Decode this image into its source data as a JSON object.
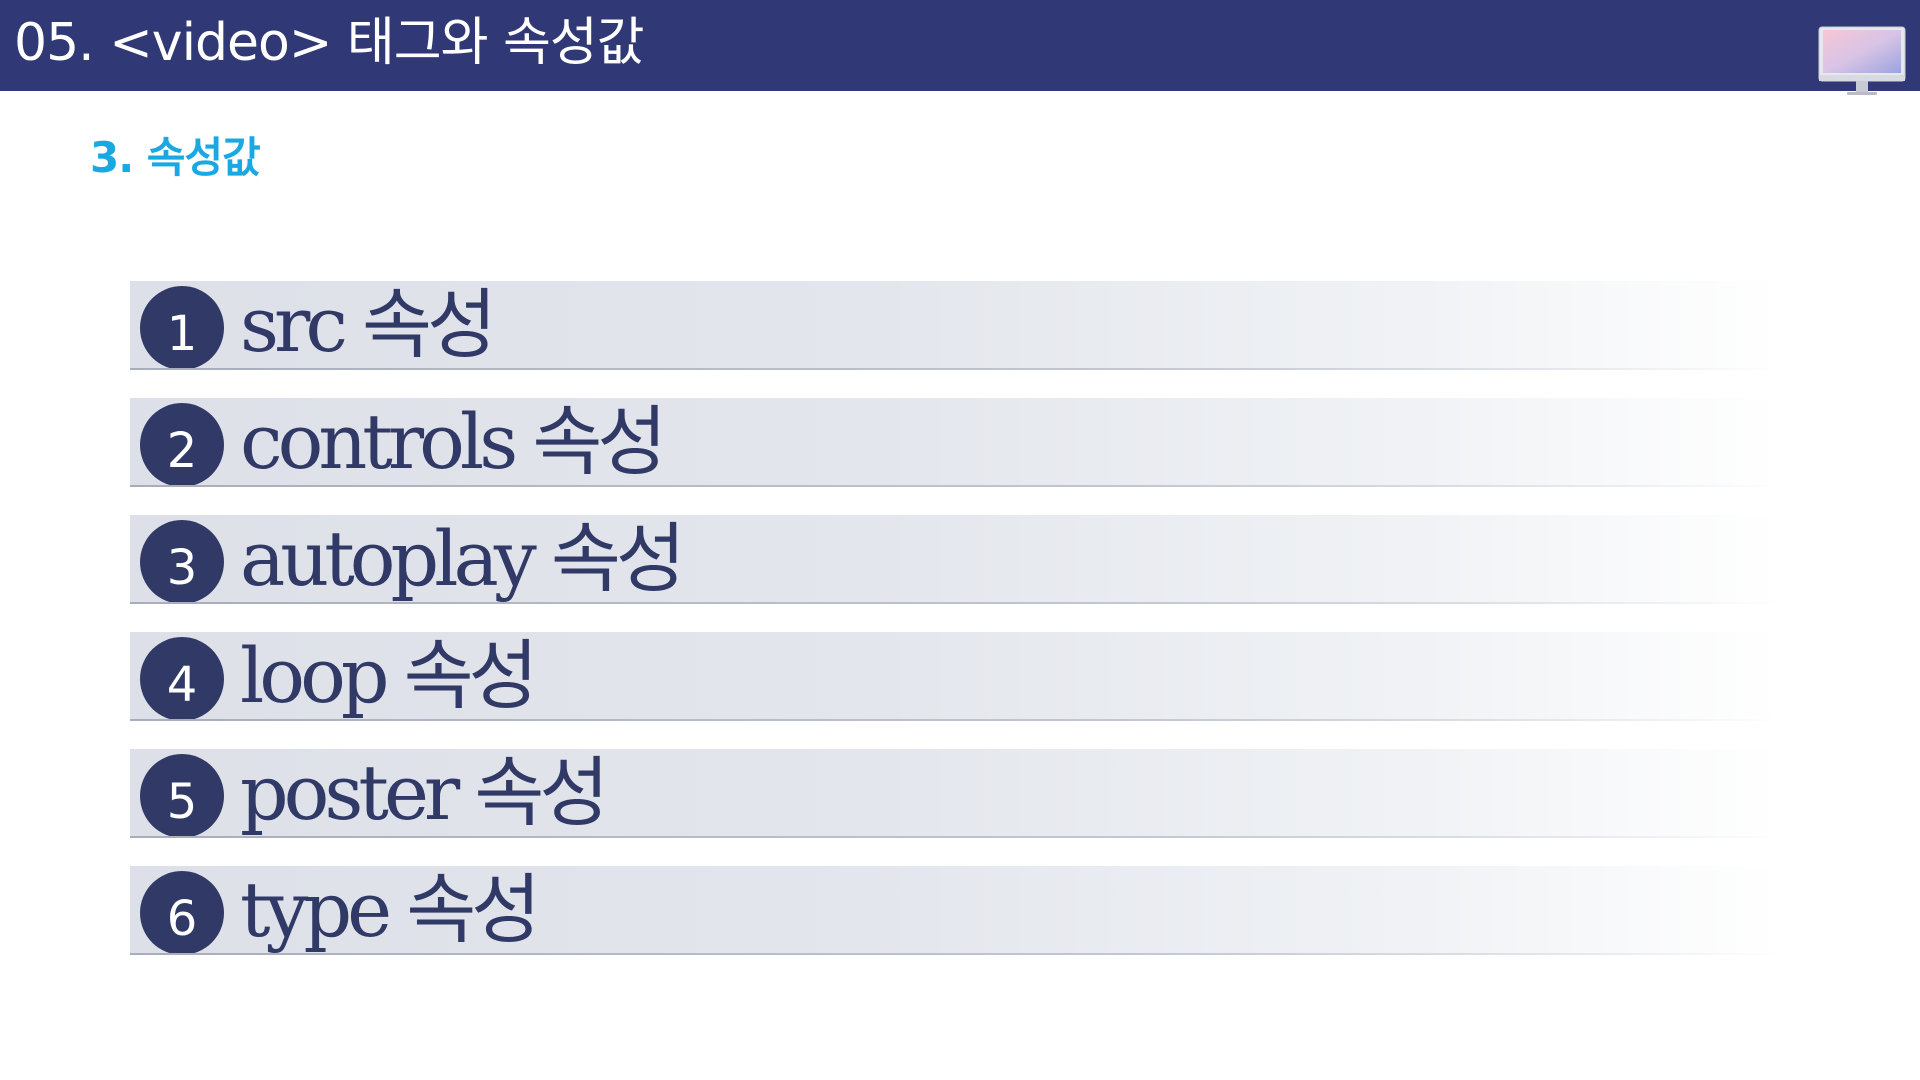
{
  "header": {
    "title": "05. <video> 태그와 속성값",
    "icon": "monitor-icon"
  },
  "section": {
    "heading": "3. 속성값"
  },
  "items": [
    {
      "number": "1",
      "label": "src 속성"
    },
    {
      "number": "2",
      "label": "controls 속성"
    },
    {
      "number": "3",
      "label": "autoplay 속성"
    },
    {
      "number": "4",
      "label": "loop 속성"
    },
    {
      "number": "5",
      "label": "poster 속성"
    },
    {
      "number": "6",
      "label": "type 속성"
    }
  ],
  "colors": {
    "header_bg": "#313876",
    "heading": "#1aa8e2",
    "item_text": "#313a66",
    "number_badge": "#313a66"
  }
}
